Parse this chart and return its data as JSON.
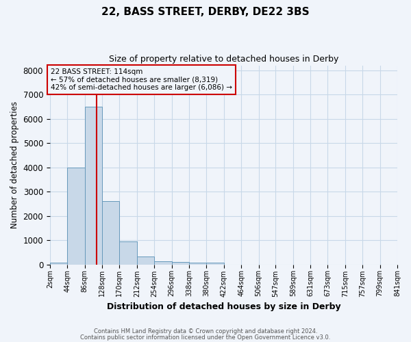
{
  "title": "22, BASS STREET, DERBY, DE22 3BS",
  "subtitle": "Size of property relative to detached houses in Derby",
  "xlabel": "Distribution of detached houses by size in Derby",
  "ylabel": "Number of detached properties",
  "footnote1": "Contains HM Land Registry data © Crown copyright and database right 2024.",
  "footnote2": "Contains public sector information licensed under the Open Government Licence v3.0.",
  "annotation_title": "22 BASS STREET: 114sqm",
  "annotation_line1": "← 57% of detached houses are smaller (8,319)",
  "annotation_line2": "42% of semi-detached houses are larger (6,086) →",
  "property_size": 114,
  "bin_edges": [
    2,
    44,
    86,
    128,
    170,
    212,
    254,
    296,
    338,
    380,
    422,
    464,
    506,
    547,
    589,
    631,
    673,
    715,
    757,
    799,
    841
  ],
  "bar_heights": [
    80,
    4000,
    6500,
    2600,
    950,
    320,
    130,
    110,
    80,
    60,
    0,
    0,
    0,
    0,
    0,
    0,
    0,
    0,
    0,
    0
  ],
  "bar_color": "#c8d8e8",
  "bar_edge_color": "#6699bb",
  "vline_color": "#cc0000",
  "vline_x": 114,
  "annotation_box_edge_color": "#cc0000",
  "grid_color": "#c8d8e8",
  "background_color": "#f0f4fa",
  "ylim": [
    0,
    8200
  ],
  "yticks": [
    0,
    1000,
    2000,
    3000,
    4000,
    5000,
    6000,
    7000,
    8000
  ]
}
